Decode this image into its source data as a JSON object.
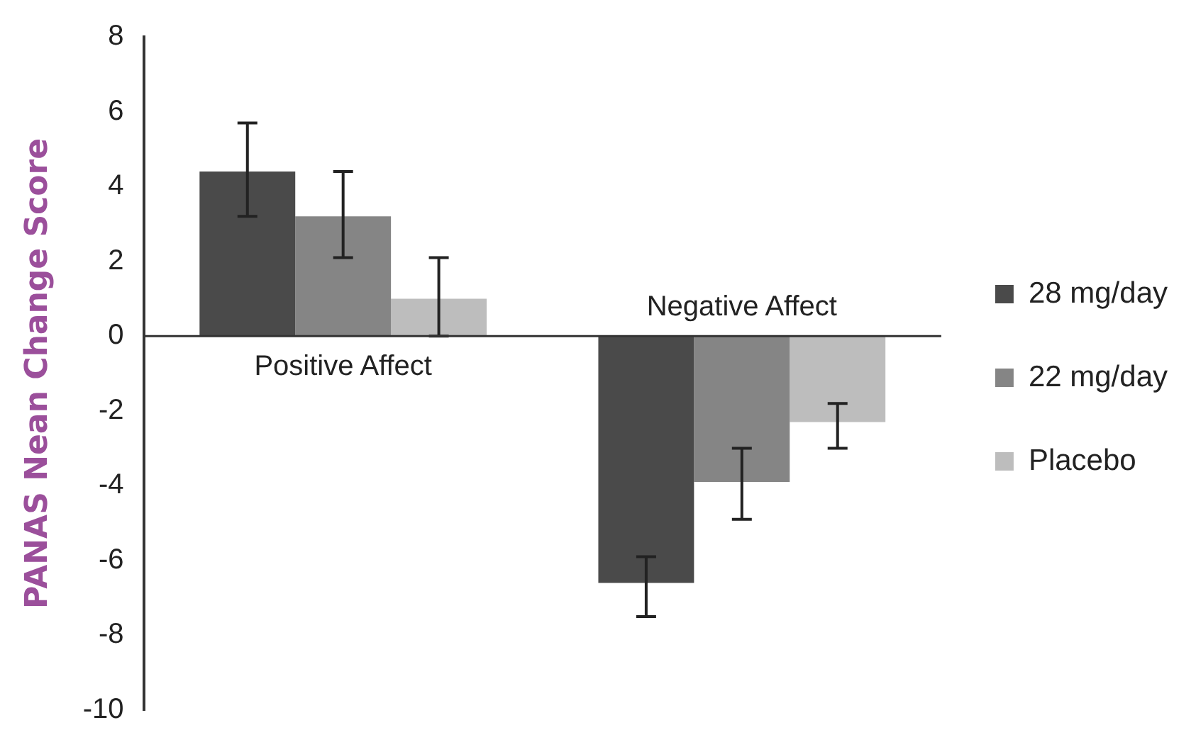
{
  "chart_data": {
    "type": "bar",
    "ylabel": "PANAS Nean Change Score",
    "categories": [
      "Positive Affect",
      "Negative Affect"
    ],
    "series": [
      {
        "name": "28 mg/day",
        "color": "#4a4a4a",
        "values": [
          4.4,
          -6.6
        ],
        "errors": [
          [
            3.2,
            5.7
          ],
          [
            -7.5,
            -5.9
          ]
        ]
      },
      {
        "name": "22 mg/day",
        "color": "#858585",
        "values": [
          3.2,
          -3.9
        ],
        "errors": [
          [
            2.1,
            4.4
          ],
          [
            -4.9,
            -3.0
          ]
        ]
      },
      {
        "name": "Placebo",
        "color": "#bdbdbd",
        "values": [
          1.0,
          -2.3
        ],
        "errors": [
          [
            0,
            2.1
          ],
          [
            -3.0,
            -1.8
          ]
        ]
      }
    ],
    "ref_lines": [
      {
        "axis": "y",
        "value": 0,
        "color": "#333333"
      }
    ],
    "ylim": [
      -10,
      8
    ],
    "yticks": [
      -10,
      -8,
      -6,
      -4,
      -2,
      0,
      2,
      4,
      6,
      8
    ],
    "grid": false,
    "legend": "right"
  }
}
